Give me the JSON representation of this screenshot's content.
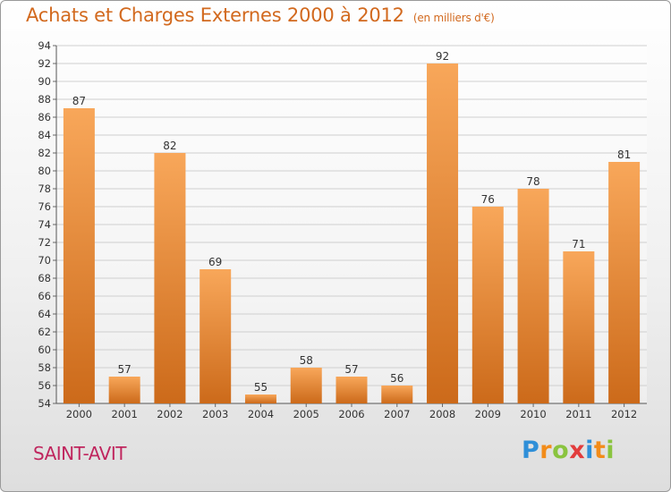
{
  "header": {
    "title": "Achats et Charges Externes 2000 à 2012",
    "subtitle": "(en milliers d'€)"
  },
  "footer": {
    "location": "SAINT-AVIT",
    "logo_text": "Proxiti"
  },
  "colors": {
    "bar_top": "#f8a75a",
    "bar_bottom": "#cc6a1a",
    "title": "#d2691e",
    "location": "#c0265e",
    "grid": "#cfcfcf"
  },
  "chart_data": {
    "type": "bar",
    "title": "Achats et Charges Externes 2000 à 2012",
    "subtitle": "(en milliers d'€)",
    "categories": [
      "2000",
      "2001",
      "2002",
      "2003",
      "2004",
      "2005",
      "2006",
      "2007",
      "2008",
      "2009",
      "2010",
      "2011",
      "2012"
    ],
    "values": [
      87,
      57,
      82,
      69,
      55,
      58,
      57,
      56,
      92,
      76,
      78,
      71,
      81
    ],
    "ylim": [
      54,
      94
    ],
    "yticks": [
      54,
      56,
      58,
      60,
      62,
      64,
      66,
      68,
      70,
      72,
      74,
      76,
      78,
      80,
      82,
      84,
      86,
      88,
      90,
      92,
      94
    ],
    "xlabel": "",
    "ylabel": "",
    "grid": true,
    "data_labels": true
  }
}
